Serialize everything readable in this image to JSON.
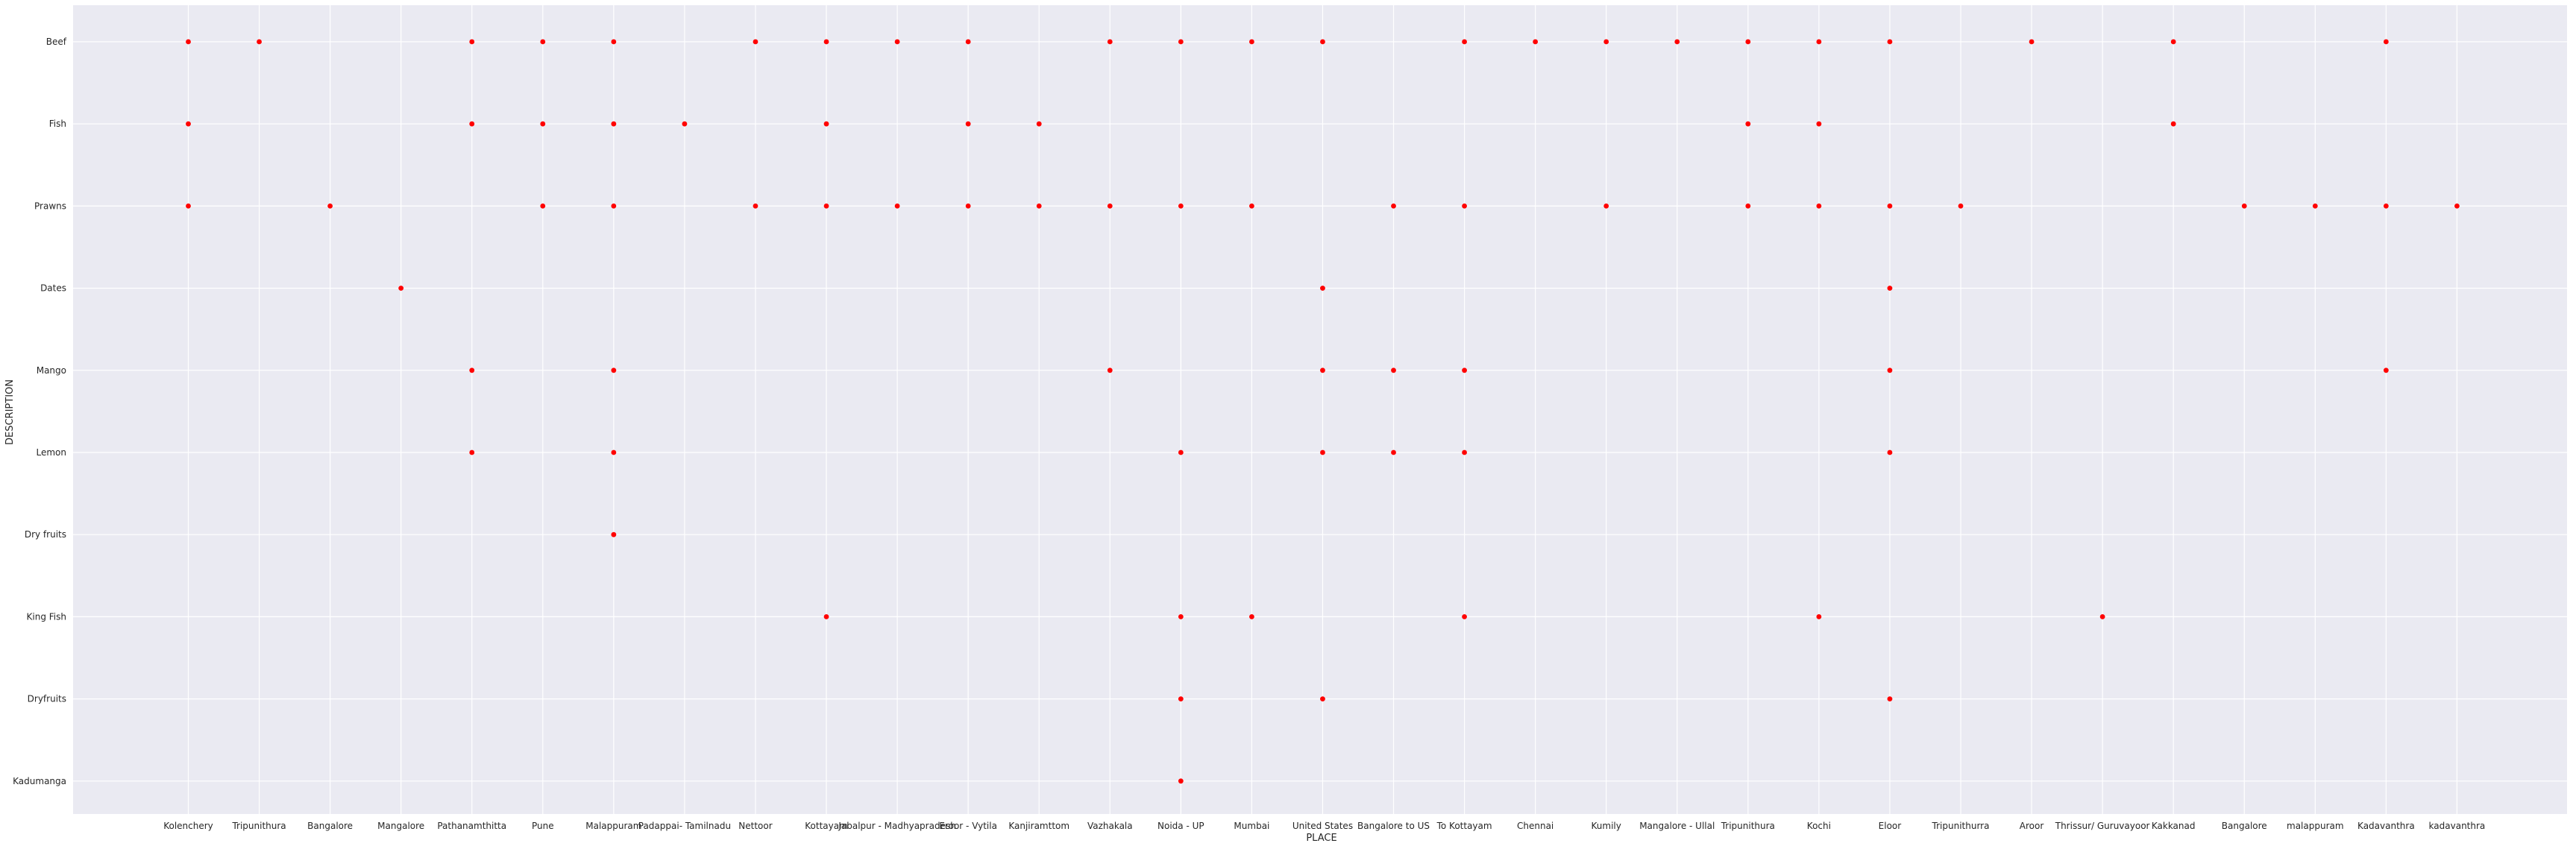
{
  "chart_data": {
    "type": "scatter",
    "xlabel": "PLACE",
    "ylabel": "DESCRIPTION",
    "grid": true,
    "marker_color": "#ff0000",
    "background_color": "#eaeaf2",
    "grid_color": "#ffffff",
    "x_categories": [
      "Kolenchery",
      "Tripunithura",
      "Bangalore",
      "Mangalore",
      "Pathanamthitta",
      "Pune",
      "Malappuram",
      "Padappai- Tamilnadu",
      "Nettoor",
      "Kottayam",
      "Jabalpur - Madhyapradesh",
      "Eroor - Vytila",
      "Kanjiramttom",
      "Vazhakala",
      "Noida - UP",
      "Mumbai",
      "United States",
      "Bangalore to US",
      "To Kottayam",
      "Chennai",
      "Kumily",
      "Mangalore - Ullal",
      "Tripunithura",
      "Kochi",
      "Eloor",
      "Tripunithurra",
      "Aroor",
      "Thrissur/ Guruvayoor",
      "Kakkanad",
      "Bangalore",
      "malappuram",
      "Kadavanthra",
      "kadavanthra"
    ],
    "y_categories": [
      "Beef",
      "Fish",
      "Prawns",
      "Dates",
      "Mango",
      "Lemon",
      "Dry fruits",
      "King Fish",
      "Dryfruits",
      "Kadumanga"
    ],
    "points": [
      {
        "x": "Kolenchery",
        "y": "Beef"
      },
      {
        "x": "Kolenchery",
        "y": "Fish"
      },
      {
        "x": "Kolenchery",
        "y": "Prawns"
      },
      {
        "x": "Tripunithura",
        "y": "Beef"
      },
      {
        "x": "Bangalore",
        "y": "Prawns"
      },
      {
        "x": "Mangalore",
        "y": "Dates"
      },
      {
        "x": "Pathanamthitta",
        "y": "Beef"
      },
      {
        "x": "Pathanamthitta",
        "y": "Fish"
      },
      {
        "x": "Pathanamthitta",
        "y": "Mango"
      },
      {
        "x": "Pathanamthitta",
        "y": "Lemon"
      },
      {
        "x": "Pune",
        "y": "Beef"
      },
      {
        "x": "Pune",
        "y": "Fish"
      },
      {
        "x": "Pune",
        "y": "Prawns"
      },
      {
        "x": "Malappuram",
        "y": "Beef"
      },
      {
        "x": "Malappuram",
        "y": "Fish"
      },
      {
        "x": "Malappuram",
        "y": "Prawns"
      },
      {
        "x": "Malappuram",
        "y": "Mango"
      },
      {
        "x": "Malappuram",
        "y": "Lemon"
      },
      {
        "x": "Malappuram",
        "y": "Dry fruits"
      },
      {
        "x": "Padappai- Tamilnadu",
        "y": "Fish"
      },
      {
        "x": "Nettoor",
        "y": "Beef"
      },
      {
        "x": "Nettoor",
        "y": "Prawns"
      },
      {
        "x": "Kottayam",
        "y": "Beef"
      },
      {
        "x": "Kottayam",
        "y": "Fish"
      },
      {
        "x": "Kottayam",
        "y": "Prawns"
      },
      {
        "x": "Kottayam",
        "y": "King Fish"
      },
      {
        "x": "Jabalpur - Madhyapradesh",
        "y": "Beef"
      },
      {
        "x": "Jabalpur - Madhyapradesh",
        "y": "Prawns"
      },
      {
        "x": "Eroor - Vytila",
        "y": "Beef"
      },
      {
        "x": "Eroor - Vytila",
        "y": "Fish"
      },
      {
        "x": "Eroor - Vytila",
        "y": "Prawns"
      },
      {
        "x": "Kanjiramttom",
        "y": "Fish"
      },
      {
        "x": "Kanjiramttom",
        "y": "Prawns"
      },
      {
        "x": "Vazhakala",
        "y": "Beef"
      },
      {
        "x": "Vazhakala",
        "y": "Prawns"
      },
      {
        "x": "Vazhakala",
        "y": "Mango"
      },
      {
        "x": "Noida - UP",
        "y": "Beef"
      },
      {
        "x": "Noida - UP",
        "y": "Prawns"
      },
      {
        "x": "Noida - UP",
        "y": "Lemon"
      },
      {
        "x": "Noida - UP",
        "y": "King Fish"
      },
      {
        "x": "Noida - UP",
        "y": "Dryfruits"
      },
      {
        "x": "Noida - UP",
        "y": "Kadumanga"
      },
      {
        "x": "Mumbai",
        "y": "Beef"
      },
      {
        "x": "Mumbai",
        "y": "Prawns"
      },
      {
        "x": "Mumbai",
        "y": "King Fish"
      },
      {
        "x": "United States",
        "y": "Beef"
      },
      {
        "x": "United States",
        "y": "Dates"
      },
      {
        "x": "United States",
        "y": "Mango"
      },
      {
        "x": "United States",
        "y": "Lemon"
      },
      {
        "x": "United States",
        "y": "Dryfruits"
      },
      {
        "x": "Bangalore to US",
        "y": "Prawns"
      },
      {
        "x": "Bangalore to US",
        "y": "Mango"
      },
      {
        "x": "Bangalore to US",
        "y": "Lemon"
      },
      {
        "x": "To Kottayam",
        "y": "Beef"
      },
      {
        "x": "To Kottayam",
        "y": "Prawns"
      },
      {
        "x": "To Kottayam",
        "y": "Mango"
      },
      {
        "x": "To Kottayam",
        "y": "Lemon"
      },
      {
        "x": "To Kottayam",
        "y": "King Fish"
      },
      {
        "x": "Chennai",
        "y": "Beef"
      },
      {
        "x": "Kumily",
        "y": "Beef"
      },
      {
        "x": "Kumily",
        "y": "Prawns"
      },
      {
        "x": "Mangalore - Ullal",
        "y": "Beef"
      },
      {
        "x": "Tripunithura#2",
        "y": "Beef"
      },
      {
        "x": "Tripunithura#2",
        "y": "Fish"
      },
      {
        "x": "Tripunithura#2",
        "y": "Prawns"
      },
      {
        "x": "Kochi",
        "y": "Beef"
      },
      {
        "x": "Kochi",
        "y": "Fish"
      },
      {
        "x": "Kochi",
        "y": "Prawns"
      },
      {
        "x": "Kochi",
        "y": "King Fish"
      },
      {
        "x": "Eloor",
        "y": "Beef"
      },
      {
        "x": "Eloor",
        "y": "Prawns"
      },
      {
        "x": "Eloor",
        "y": "Dates"
      },
      {
        "x": "Eloor",
        "y": "Mango"
      },
      {
        "x": "Eloor",
        "y": "Lemon"
      },
      {
        "x": "Eloor",
        "y": "Dryfruits"
      },
      {
        "x": "Tripunithurra",
        "y": "Prawns"
      },
      {
        "x": "Aroor",
        "y": "Beef"
      },
      {
        "x": "Thrissur/ Guruvayoor",
        "y": "King Fish"
      },
      {
        "x": "Kakkanad",
        "y": "Beef"
      },
      {
        "x": "Kakkanad",
        "y": "Fish"
      },
      {
        "x": "Bangalore#2",
        "y": "Prawns"
      },
      {
        "x": "malappuram",
        "y": "Prawns"
      },
      {
        "x": "Kadavanthra",
        "y": "Beef"
      },
      {
        "x": "Kadavanthra",
        "y": "Prawns"
      },
      {
        "x": "Kadavanthra",
        "y": "Mango"
      },
      {
        "x": "kadavanthra",
        "y": "Prawns"
      }
    ]
  }
}
